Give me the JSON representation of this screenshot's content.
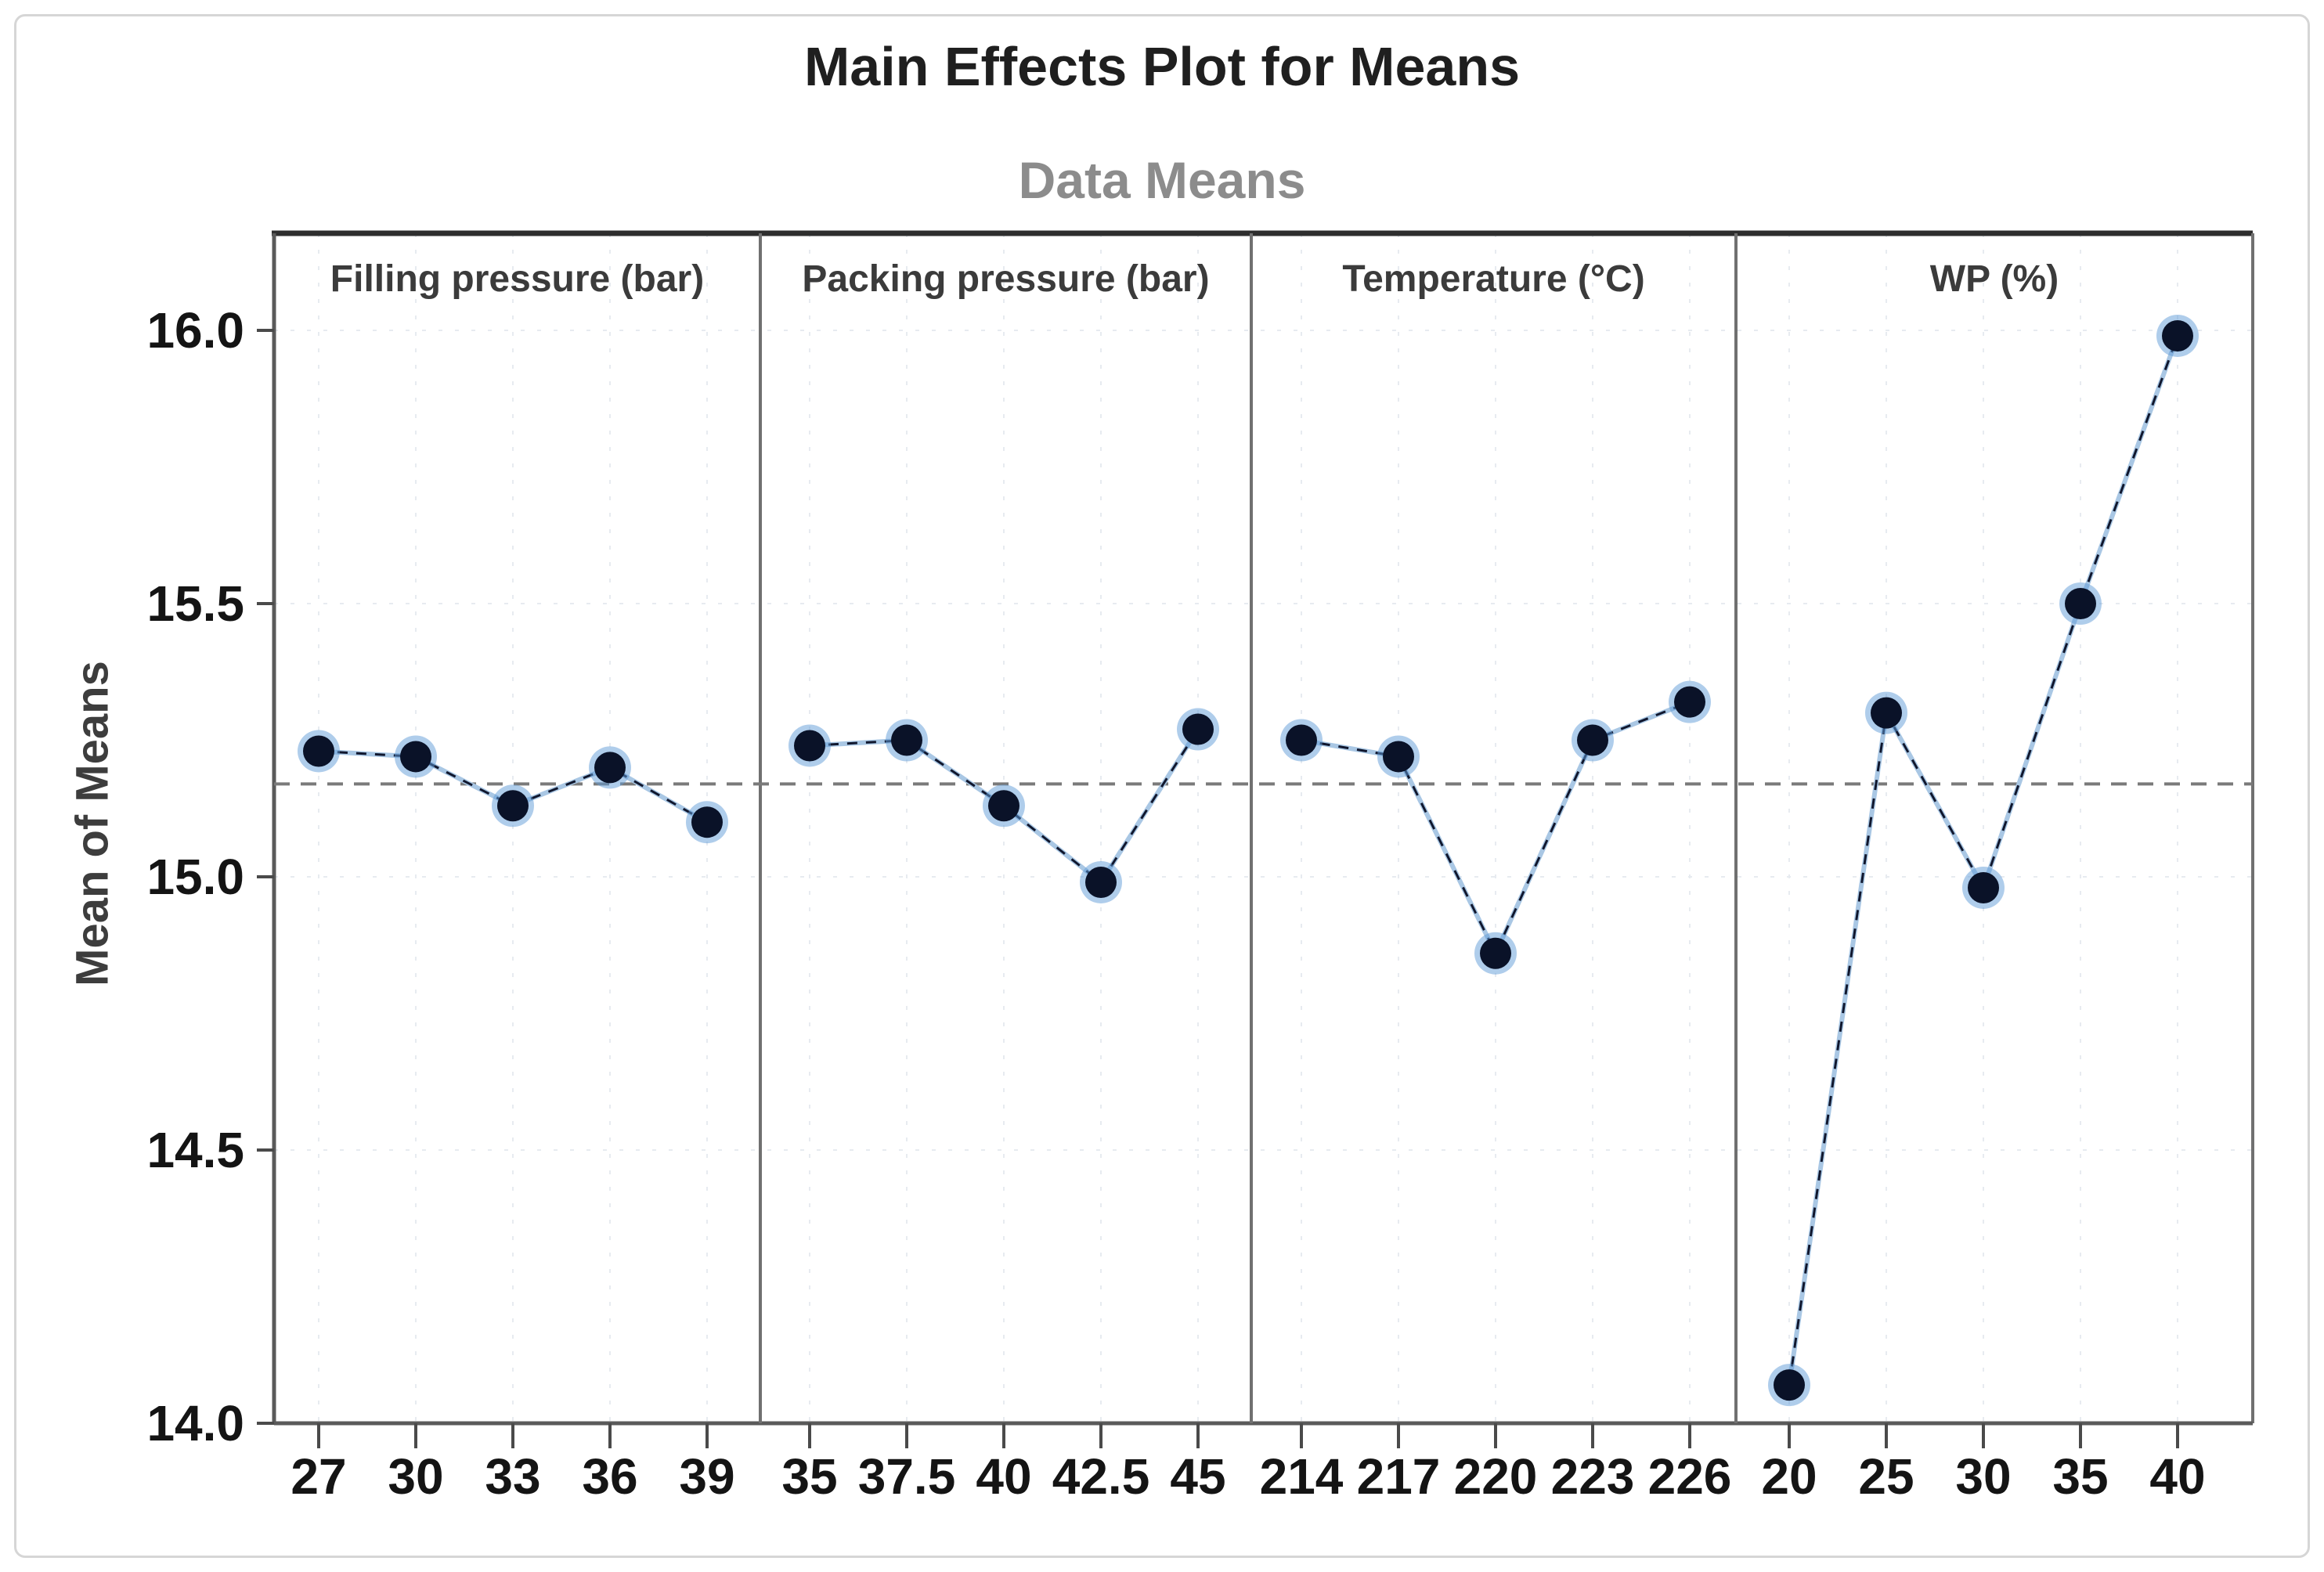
{
  "title": "Main Effects Plot for Means",
  "subtitle": "Data Means",
  "ylabel": "Mean of Means",
  "colors": {
    "title": "#1f1f1f",
    "subtitle": "#8c8c8c",
    "panel_header": "#3b3b3b",
    "tick_label": "#141414",
    "frame_top": "#2e2e2e",
    "frame": "#5a5a5a",
    "divider": "#707070",
    "gridline": "#e7ebf0",
    "reference_line": "#7a7a7a",
    "series_line_under": "#a9c7e4",
    "series_line_dash": "#10172e",
    "point_fill": "#0a1228",
    "point_halo": "#5f9bd8"
  },
  "chart_data": {
    "type": "line",
    "title": "Main Effects Plot for Means",
    "subtitle": "Data Means",
    "ylabel": "Mean of Means",
    "xlabel": "",
    "ylim": [
      14.0,
      16.0
    ],
    "yticks": [
      16.0,
      15.5,
      15.0,
      14.5,
      14.0
    ],
    "ytick_labels": [
      "16.0",
      "15.5",
      "15.0",
      "14.5",
      "14.0"
    ],
    "grid": "faint dotted gridlines at ticks and category positions",
    "legend": "none",
    "reference_line": {
      "value": 15.17,
      "style": "dashed",
      "meaning": "grand mean of means"
    },
    "marker": "filled circle",
    "panels": [
      {
        "label": "Filling pressure (bar)",
        "categories": [
          "27",
          "30",
          "33",
          "36",
          "39"
        ],
        "values": [
          15.23,
          15.22,
          15.13,
          15.2,
          15.1
        ]
      },
      {
        "label": "Packing pressure (bar)",
        "categories": [
          "35",
          "37.5",
          "40",
          "42.5",
          "45"
        ],
        "values": [
          15.24,
          15.25,
          15.13,
          14.99,
          15.27
        ]
      },
      {
        "label": "Temperature (°C)",
        "categories": [
          "214",
          "217",
          "220",
          "223",
          "226"
        ],
        "values": [
          15.25,
          15.22,
          14.86,
          15.25,
          15.32
        ]
      },
      {
        "label": "WP (%)",
        "categories": [
          "20",
          "25",
          "30",
          "35",
          "40"
        ],
        "values": [
          14.07,
          15.3,
          14.98,
          15.5,
          15.99
        ]
      }
    ]
  }
}
